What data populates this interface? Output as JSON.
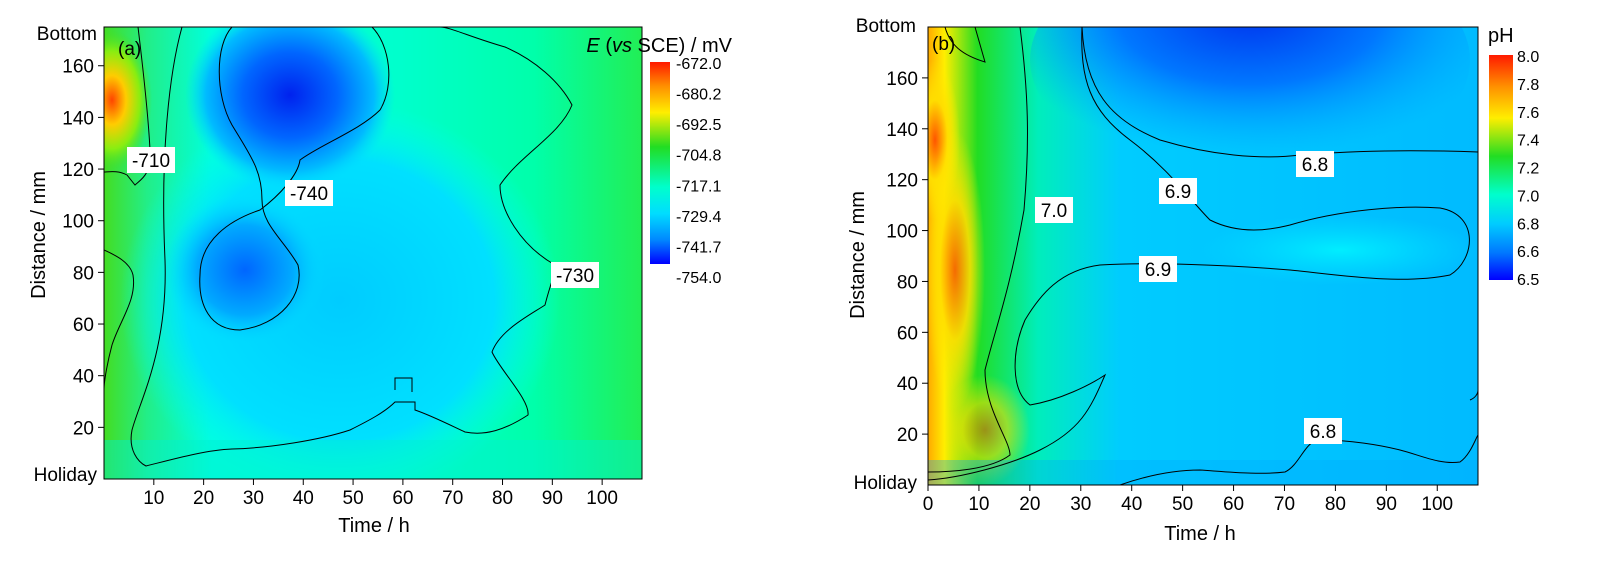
{
  "chart_data": [
    {
      "type": "heatmap",
      "panel_label": "(a)",
      "xlabel": "Time / h",
      "ylabel": "Distance  / mm",
      "x_ticks": [
        "10",
        "20",
        "30",
        "40",
        "50",
        "60",
        "70",
        "80",
        "90",
        "100"
      ],
      "y_ticks": [
        "20",
        "40",
        "60",
        "80",
        "100",
        "120",
        "140",
        "160"
      ],
      "y_top_label": "Bottom",
      "y_bottom_label": "Holiday",
      "xlim": [
        0,
        108
      ],
      "ylim": [
        0,
        175
      ],
      "colorbar": {
        "title_italic": "E",
        "title_italic2": "vs",
        "title_rest": " SCE) / mV",
        "title_paren": " (",
        "labels": [
          "-672.0",
          "-680.2",
          "-692.5",
          "-704.8",
          "-717.1",
          "-729.4",
          "-741.7",
          "-754.0"
        ],
        "range": [
          -754.0,
          -672.0
        ]
      },
      "contour_labels": [
        "-710",
        "-740",
        "-730"
      ],
      "colors": {
        "high": "#ff2a00",
        "mid_high": "#ffe600",
        "mid": "#22dd33",
        "mid_low": "#00ffff",
        "low": "#0000ff"
      }
    },
    {
      "type": "heatmap",
      "panel_label": "(b)",
      "xlabel": "Time / h",
      "ylabel": "Distance  / mm",
      "x_ticks": [
        "0",
        "10",
        "20",
        "30",
        "40",
        "50",
        "60",
        "70",
        "80",
        "90",
        "100"
      ],
      "y_ticks": [
        "20",
        "40",
        "60",
        "80",
        "100",
        "120",
        "140",
        "160"
      ],
      "y_top_label": "Bottom",
      "y_bottom_label": "Holiday",
      "xlim": [
        0,
        108
      ],
      "ylim": [
        0,
        180
      ],
      "colorbar": {
        "title": "pH",
        "labels": [
          "8.0",
          "7.8",
          "7.6",
          "7.4",
          "7.2",
          "7.0",
          "6.8",
          "6.6",
          "6.5"
        ],
        "range": [
          6.5,
          8.0
        ]
      },
      "contour_labels": [
        "6.8",
        "6.9",
        "7.0",
        "6.9",
        "6.8"
      ],
      "colors": {
        "high": "#ff2a00",
        "mid_high": "#ffe600",
        "mid": "#22dd33",
        "mid_low": "#00ffff",
        "low": "#0000ff"
      }
    }
  ]
}
